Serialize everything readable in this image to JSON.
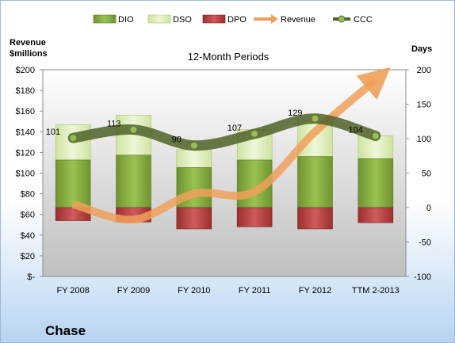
{
  "chart_data": {
    "type": "bar",
    "title": "12-Month Periods",
    "company": "Chase",
    "left_axis_label": [
      "Revenue",
      "$millions"
    ],
    "right_axis_label": "Days",
    "categories": [
      "FY 2008",
      "FY 2009",
      "FY 2010",
      "FY 2011",
      "FY 2012",
      "TTM 2-2013"
    ],
    "left_axis": {
      "min": 0,
      "max": 200,
      "step": 20,
      "tick_labels": [
        "$-",
        "$20",
        "$40",
        "$60",
        "$80",
        "$100",
        "$120",
        "$140",
        "$160",
        "$180",
        "$200"
      ]
    },
    "right_axis": {
      "min": -100,
      "max": 200,
      "step": 50,
      "tick_labels": [
        "-100",
        "-50",
        "0",
        "50",
        "100",
        "150",
        "200"
      ]
    },
    "series": [
      {
        "name": "DIO",
        "axis": "right",
        "kind": "stacked-bar",
        "values": [
          69,
          76,
          58,
          69,
          74,
          71
        ],
        "color": "#7fa23a"
      },
      {
        "name": "DSO",
        "axis": "right",
        "kind": "stacked-bar",
        "values": [
          51,
          58,
          26,
          44,
          53,
          33
        ],
        "color": "#d9ecb0"
      },
      {
        "name": "DPO",
        "axis": "right",
        "kind": "negative-bar",
        "values": [
          -19,
          -21,
          -31,
          -28,
          -31,
          -22
        ],
        "color": "#b23a3a"
      },
      {
        "name": "Revenue",
        "axis": "left",
        "kind": "line",
        "values": [
          70,
          55,
          80,
          82,
          140,
          190
        ],
        "color": "#f0a05a"
      },
      {
        "name": "CCC",
        "axis": "right",
        "kind": "line",
        "values": [
          101,
          113,
          90,
          107,
          129,
          104
        ],
        "color": "#4f6228",
        "data_labels": [
          "101",
          "113",
          "90",
          "107",
          "129",
          "104"
        ]
      }
    ],
    "legend_position": "top",
    "grid": false
  }
}
